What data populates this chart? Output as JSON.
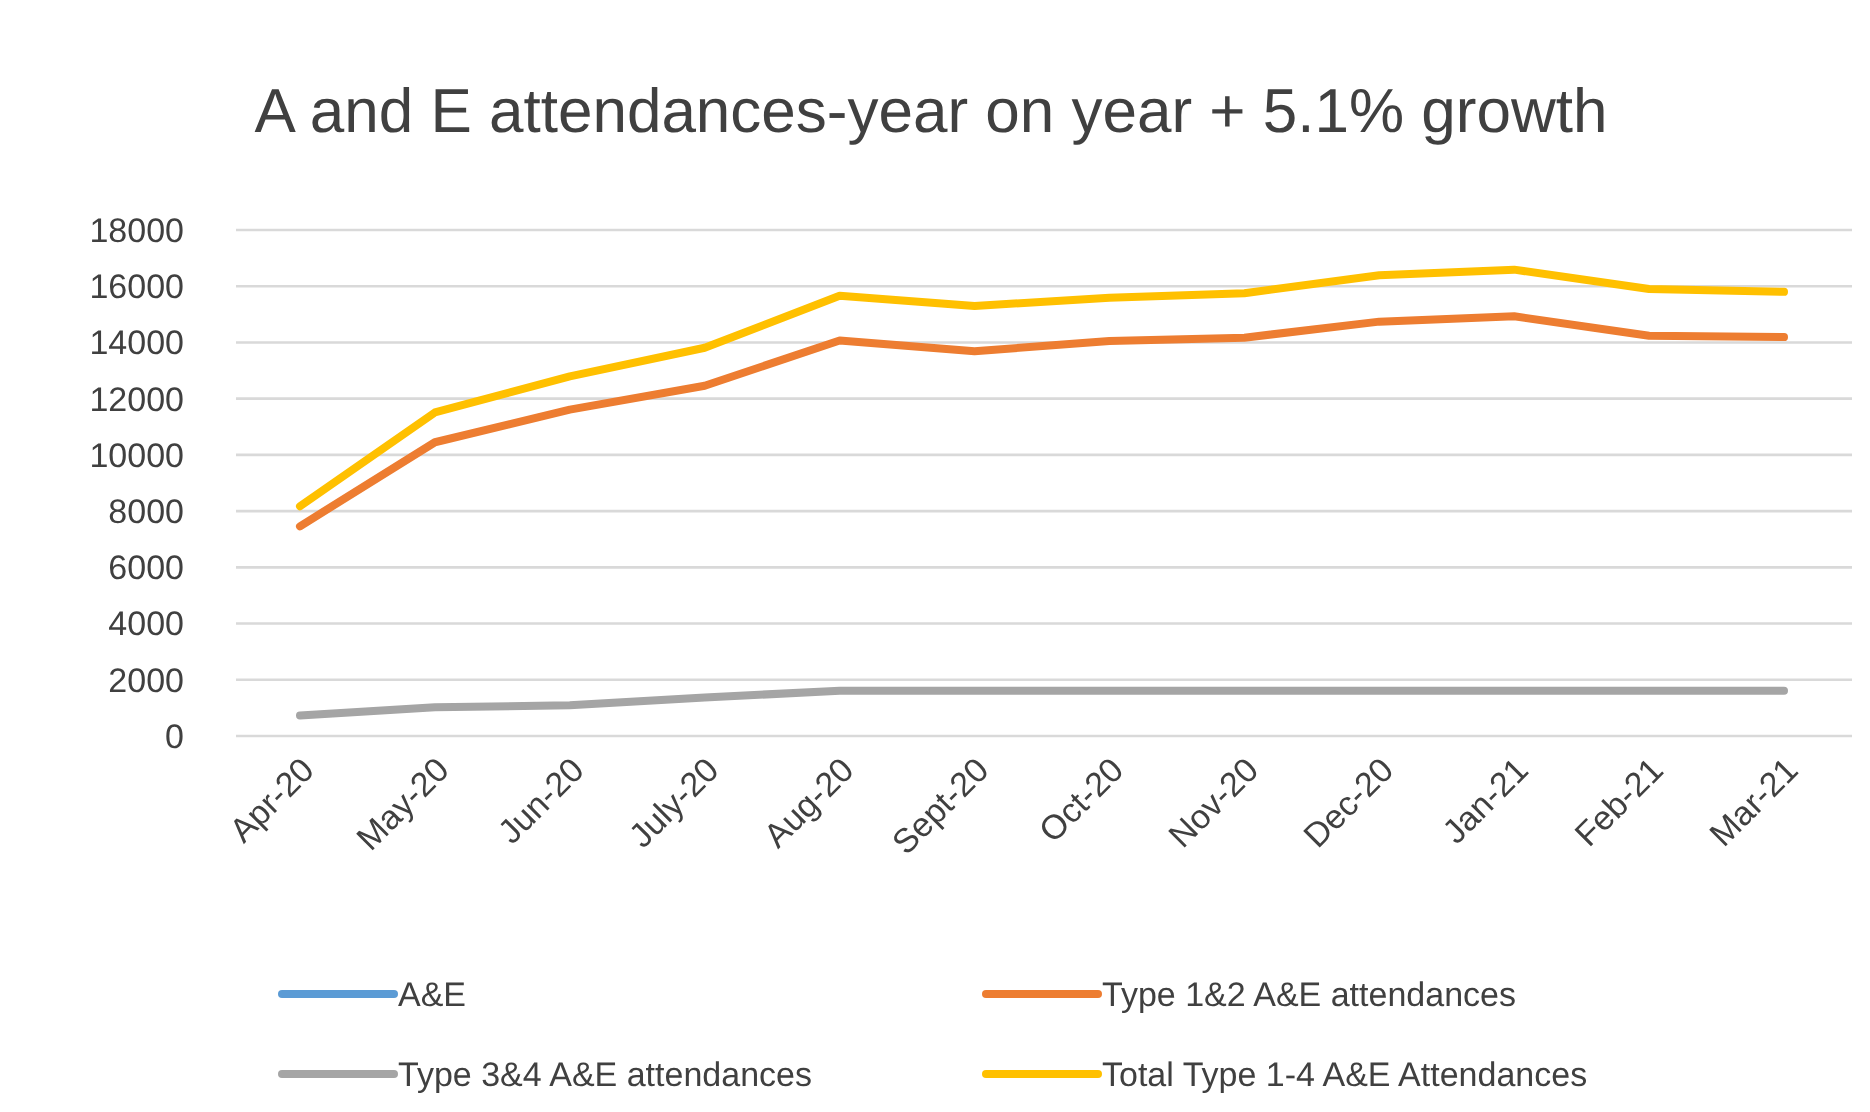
{
  "chart_data": {
    "type": "line",
    "title": "A and E attendances-year on year + 5.1% growth",
    "categories": [
      "Apr-20",
      "May-20",
      "Jun-20",
      "July-20",
      "Aug-20",
      "Sept-20",
      "Oct-20",
      "Nov-20",
      "Dec-20",
      "Jan-21",
      "Feb-21",
      "Mar-21"
    ],
    "series": [
      {
        "name": "A&E",
        "color": "#5b9bd5",
        "values": [
          null,
          null,
          null,
          null,
          null,
          null,
          null,
          null,
          null,
          null,
          null,
          null
        ]
      },
      {
        "name": "Type 1&2 A&E attendances",
        "color": "#ed7d31",
        "values": [
          7460,
          10450,
          11610,
          12460,
          14070,
          13690,
          14050,
          14170,
          14740,
          14930,
          14240,
          14190
        ]
      },
      {
        "name": "Type 3&4 A&E attendances",
        "color": "#a5a5a5",
        "values": [
          730,
          1020,
          1090,
          1370,
          1610,
          1610,
          1610,
          1610,
          1610,
          1610,
          1610,
          1610
        ]
      },
      {
        "name": "Total Type 1-4 A&E Attendances",
        "color": "#ffc000",
        "values": [
          8170,
          11510,
          12790,
          13810,
          15660,
          15300,
          15590,
          15750,
          16390,
          16590,
          15900,
          15800
        ]
      }
    ],
    "ylim": [
      0,
      18000
    ],
    "yticks": [
      0,
      2000,
      4000,
      6000,
      8000,
      10000,
      12000,
      14000,
      16000,
      18000
    ],
    "grid": "y",
    "legend": "bottom",
    "marker": "none",
    "line_style": "solid"
  }
}
